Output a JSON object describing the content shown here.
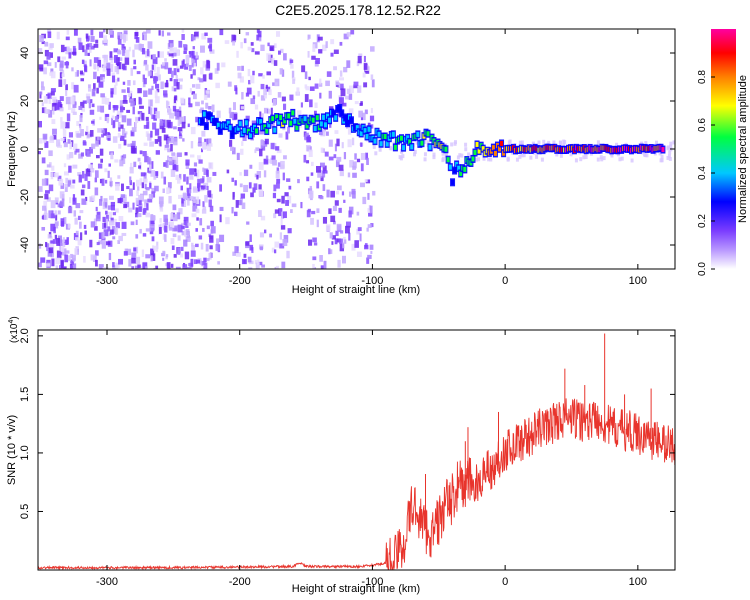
{
  "figure_title": "C2E5.2025.178.12.52.R22",
  "colors": {
    "snr_line": "#e8342c",
    "axis": "#000000",
    "background": "#ffffff"
  },
  "chart_data": [
    {
      "type": "heatmap",
      "name": "spectrogram",
      "xlabel": "Height of straight line (km)",
      "ylabel": "Frequency (Hz)",
      "xlim": [
        -352,
        128
      ],
      "ylim": [
        -50,
        50
      ],
      "x_ticks": [
        -300,
        -200,
        -100,
        0,
        100
      ],
      "y_ticks": [
        -40,
        -20,
        0,
        20,
        40
      ],
      "colorbar": {
        "label": "Normalized spectral amplitude",
        "range": [
          0,
          1
        ],
        "ticks": [
          "0.0",
          "0.2",
          "0.4",
          "0.6",
          "0.8"
        ],
        "tick_values": [
          0,
          0.2,
          0.4,
          0.6,
          0.8
        ],
        "colormap": [
          "#ffffff",
          "#7a3cff",
          "#0000ff",
          "#00c8ff",
          "#00ff40",
          "#ffff00",
          "#ff8000",
          "#ff0000",
          "#ff00a0"
        ]
      },
      "signal_track": [
        {
          "x": -230,
          "y": 12,
          "amplitude": 0.3
        },
        {
          "x": -200,
          "y": 8,
          "amplitude": 0.35
        },
        {
          "x": -180,
          "y": 9,
          "amplitude": 0.45
        },
        {
          "x": -165,
          "y": 13,
          "amplitude": 0.5
        },
        {
          "x": -145,
          "y": 10,
          "amplitude": 0.45
        },
        {
          "x": -125,
          "y": 15,
          "amplitude": 0.3
        },
        {
          "x": -100,
          "y": 5,
          "amplitude": 0.35
        },
        {
          "x": -80,
          "y": 3,
          "amplitude": 0.45
        },
        {
          "x": -60,
          "y": 4,
          "amplitude": 0.5
        },
        {
          "x": -45,
          "y": 2,
          "amplitude": 0.55
        },
        {
          "x": -40,
          "y": -11,
          "amplitude": 0.35
        },
        {
          "x": -20,
          "y": 0,
          "amplitude": 0.6
        },
        {
          "x": 0,
          "y": 0,
          "amplitude": 0.75
        },
        {
          "x": 40,
          "y": 0,
          "amplitude": 0.85
        },
        {
          "x": 80,
          "y": 0,
          "amplitude": 0.9
        },
        {
          "x": 120,
          "y": 0,
          "amplitude": 0.85
        }
      ]
    },
    {
      "type": "line",
      "name": "snr",
      "xlabel": "Height of straight line (km)",
      "ylabel": "SNR (10 * v/v)",
      "yscale_label": "(x10",
      "yscale_exp": "4",
      "yscale_close": ")",
      "xlim": [
        -352,
        128
      ],
      "ylim": [
        0,
        2.05
      ],
      "x_ticks": [
        -300,
        -200,
        -100,
        0,
        100
      ],
      "y_ticks": [
        0.5,
        1.0,
        1.5,
        2.0
      ],
      "y_tick_labels": [
        "0.5",
        "1.0",
        "1.5",
        "2.0"
      ],
      "series": [
        {
          "x": [
            -352,
            -300,
            -250,
            -200,
            -160,
            -155,
            -150,
            -110,
            -100,
            -90,
            -80,
            -75,
            -70,
            -65,
            -60,
            -55,
            -50,
            -45,
            -40,
            -35,
            -30,
            -25,
            -20,
            -15,
            -10,
            -5,
            0,
            5,
            10,
            15,
            20,
            25,
            30,
            35,
            40,
            45,
            50,
            55,
            60,
            65,
            70,
            75,
            80,
            85,
            90,
            95,
            100,
            105,
            110,
            115,
            120,
            128
          ],
          "y": [
            0.02,
            0.02,
            0.02,
            0.025,
            0.03,
            0.06,
            0.03,
            0.03,
            0.04,
            0.06,
            0.14,
            0.3,
            0.55,
            0.48,
            0.35,
            0.3,
            0.42,
            0.55,
            0.6,
            0.75,
            0.7,
            0.78,
            0.65,
            0.92,
            0.82,
            0.95,
            1.02,
            1.05,
            1.1,
            1.12,
            1.15,
            1.2,
            1.22,
            1.25,
            1.28,
            1.3,
            1.3,
            1.28,
            1.27,
            1.28,
            1.3,
            1.25,
            1.22,
            1.2,
            1.2,
            1.18,
            1.16,
            1.15,
            1.12,
            1.1,
            1.08,
            1.06
          ]
        }
      ],
      "spikes": [
        {
          "x": -60,
          "y": 0.82
        },
        {
          "x": -30,
          "y": 1.1
        },
        {
          "x": -28,
          "y": 1.22
        },
        {
          "x": -5,
          "y": 1.35
        },
        {
          "x": 45,
          "y": 1.72
        },
        {
          "x": 60,
          "y": 1.58
        },
        {
          "x": 75,
          "y": 2.02
        },
        {
          "x": 90,
          "y": 1.5
        },
        {
          "x": 110,
          "y": 1.55
        }
      ]
    }
  ]
}
